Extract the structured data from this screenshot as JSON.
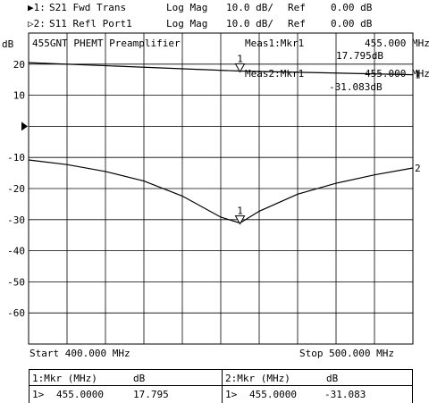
{
  "header": {
    "trace1": {
      "marker": "▶1:",
      "name": "S21 Fwd Trans",
      "format": "Log Mag",
      "scale": "10.0 dB/",
      "ref_label": "Ref",
      "ref_value": "0.00 dB"
    },
    "trace2": {
      "marker": "▷2:",
      "name": "S11 Refl Port1",
      "format": "Log Mag",
      "scale": "10.0 dB/",
      "ref_label": "Ref",
      "ref_value": "0.00 dB"
    }
  },
  "chart_data": {
    "type": "line",
    "title": "455GNT PHEMT Preamplifier",
    "ylabel": "dB",
    "xlim": [
      400,
      500
    ],
    "ylim": [
      -70,
      30
    ],
    "grid": true,
    "yticks": [
      20,
      10,
      0,
      -10,
      -20,
      -30,
      -40,
      -50,
      -60
    ],
    "ytick_labels": [
      "20",
      "10",
      "",
      "-10",
      "-20",
      "-30",
      "-40",
      "-50",
      "-60"
    ],
    "x_start_label": "Start 400.000 MHz",
    "x_stop_label": "Stop 500.000 MHz",
    "series": [
      {
        "name": "1",
        "x": [
          400,
          455,
          500
        ],
        "y": [
          20.5,
          17.795,
          16.6
        ]
      },
      {
        "name": "2",
        "x": [
          400,
          410,
          420,
          430,
          440,
          450,
          455,
          460,
          470,
          480,
          490,
          500
        ],
        "y": [
          -10.8,
          -12.3,
          -14.5,
          -17.6,
          -22.4,
          -29.2,
          -31.083,
          -27.3,
          -21.8,
          -18.3,
          -15.6,
          -13.4
        ]
      }
    ],
    "markers": [
      {
        "trace": 1,
        "label": "1",
        "x": 455,
        "y": 17.795
      },
      {
        "trace": 2,
        "label": "1",
        "x": 455,
        "y": -31.083
      }
    ],
    "meas": [
      {
        "label": "Meas1:Mkr1",
        "freq": "455.000 MHz",
        "value": "17.795dB"
      },
      {
        "label": "Meas2:Mkr1",
        "freq": "455.000 MHz",
        "value": "-31.083dB"
      }
    ],
    "ref_arrow_value": 0
  },
  "table": {
    "col1_header": "1:Mkr (MHz)",
    "col1_unit": "dB",
    "col2_header": "2:Mkr (MHz)",
    "col2_unit": "dB",
    "row1": {
      "index": "1>",
      "freq": "455.0000",
      "value": "17.795"
    },
    "row2": {
      "index": "1>",
      "freq": "455.0000",
      "value": "-31.083"
    }
  }
}
